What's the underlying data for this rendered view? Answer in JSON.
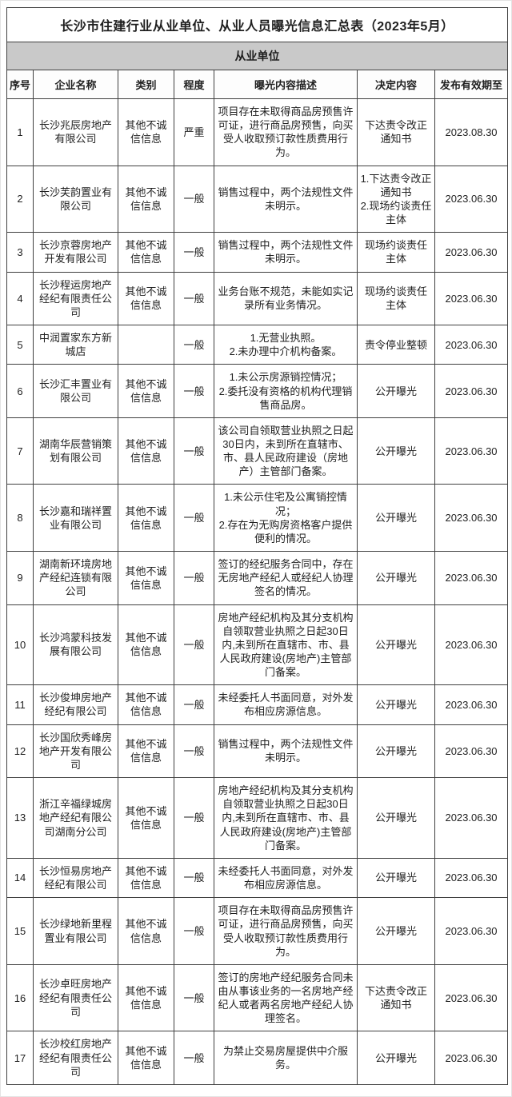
{
  "page": {
    "title": "长沙市住建行业从业单位、从业人员曝光信息汇总表（2023年5月）",
    "section_header": "从业单位"
  },
  "table": {
    "columns": [
      "序号",
      "企业名称",
      "类别",
      "程度",
      "曝光内容描述",
      "决定内容",
      "发布有效期至"
    ],
    "rows": [
      {
        "no": "1",
        "company": "长沙兆辰房地产有限公司",
        "category": "其他不诚信信息",
        "degree": "严重",
        "description": "项目存在未取得商品房预售许可证，进行商品房预售，向买受人收取预订款性质费用行为。",
        "decision": "下达责令改正通知书",
        "valid_until": "2023.08.30"
      },
      {
        "no": "2",
        "company": "长沙芙韵置业有限公司",
        "category": "其他不诚信信息",
        "degree": "一般",
        "description": "销售过程中，两个法规性文件未明示。",
        "decision": "1.下达责令改正通知书\n2.现场约谈责任主体",
        "valid_until": "2023.06.30"
      },
      {
        "no": "3",
        "company": "长沙京蓉房地产开发有限公司",
        "category": "其他不诚信信息",
        "degree": "一般",
        "description": "销售过程中，两个法规性文件未明示。",
        "decision": "现场约谈责任主体",
        "valid_until": "2023.06.30"
      },
      {
        "no": "4",
        "company": "长沙程运房地产经纪有限责任公司",
        "category": "其他不诚信信息",
        "degree": "一般",
        "description": "业务台账不规范，未能如实记录所有业务情况。",
        "decision": "现场约谈责任主体",
        "valid_until": "2023.06.30"
      },
      {
        "no": "5",
        "company": "中润置家东方新城店",
        "category": "",
        "degree": "一般",
        "description": "1.无营业执照。\n2.未办理中介机构备案。",
        "decision": "责令停业整顿",
        "valid_until": "2023.06.30"
      },
      {
        "no": "6",
        "company": "长沙汇丰置业有限公司",
        "category": "其他不诚信信息",
        "degree": "一般",
        "description": "1.未公示房源销控情况；\n2.委托没有资格的机构代理销售商品房。",
        "decision": "公开曝光",
        "valid_until": "2023.06.30"
      },
      {
        "no": "7",
        "company": "湖南华辰营销策划有限公司",
        "category": "其他不诚信信息",
        "degree": "一般",
        "description": "该公司自领取营业执照之日起30日内，未到所在直辖市、市、县人民政府建设（房地产）主管部门备案。",
        "decision": "公开曝光",
        "valid_until": "2023.06.30"
      },
      {
        "no": "8",
        "company": "长沙嘉和瑞祥置业有限公司",
        "category": "其他不诚信信息",
        "degree": "一般",
        "description": "1.未公示住宅及公寓销控情况；\n2.存在为无购房资格客户提供便利的情况。",
        "decision": "公开曝光",
        "valid_until": "2023.06.30"
      },
      {
        "no": "9",
        "company": "湖南新环境房地产经纪连锁有限公司",
        "category": "其他不诚信信息",
        "degree": "一般",
        "description": "签订的经纪服务合同中，存在无房地产经纪人或经纪人协理签名的情况。",
        "decision": "公开曝光",
        "valid_until": "2023.06.30"
      },
      {
        "no": "10",
        "company": "长沙鸿蒙科技发展有限公司",
        "category": "其他不诚信信息",
        "degree": "一般",
        "description": "房地产经纪机构及其分支机构自领取营业执照之日起30日内,未到所在直辖市、市、县人民政府建设(房地产)主管部门备案。",
        "decision": "公开曝光",
        "valid_until": "2023.06.30"
      },
      {
        "no": "11",
        "company": "长沙俊坤房地产经纪有限公司",
        "category": "其他不诚信信息",
        "degree": "一般",
        "description": "未经委托人书面同意，对外发布相应房源信息。",
        "decision": "公开曝光",
        "valid_until": "2023.06.30"
      },
      {
        "no": "12",
        "company": "长沙国欣秀峰房地产开发有限公司",
        "category": "其他不诚信信息",
        "degree": "一般",
        "description": "销售过程中，两个法规性文件未明示。",
        "decision": "公开曝光",
        "valid_until": "2023.06.30"
      },
      {
        "no": "13",
        "company": "浙江辛福绿城房地产经纪有限公司湖南分公司",
        "category": "其他不诚信信息",
        "degree": "一般",
        "description": "房地产经纪机构及其分支机构自领取营业执照之日起30日内,未到所在直辖市、市、县人民政府建设(房地产)主管部门备案。",
        "decision": "公开曝光",
        "valid_until": "2023.06.30"
      },
      {
        "no": "14",
        "company": "长沙恒易房地产经纪有限公司",
        "category": "其他不诚信信息",
        "degree": "一般",
        "description": "未经委托人书面同意，对外发布相应房源信息。",
        "decision": "公开曝光",
        "valid_until": "2023.06.30"
      },
      {
        "no": "15",
        "company": "长沙绿地新里程置业有限公司",
        "category": "其他不诚信信息",
        "degree": "一般",
        "description": "项目存在未取得商品房预售许可证，进行商品房预售，向买受人收取预订款性质费用行为。",
        "decision": "公开曝光",
        "valid_until": "2023.06.30"
      },
      {
        "no": "16",
        "company": "长沙卓旺房地产经纪有限责任公司",
        "category": "其他不诚信信息",
        "degree": "一般",
        "description": "签订的房地产经纪服务合同未由从事该业务的一名房地产经纪人或者两名房地产经纪人协理签名。",
        "decision": "下达责令改正通知书",
        "valid_until": "2023.06.30"
      },
      {
        "no": "17",
        "company": "长沙校红房地产经纪有限责任公司",
        "category": "其他不诚信信息",
        "degree": "一般",
        "description": "为禁止交易房屋提供中介服务。",
        "decision": "公开曝光",
        "valid_until": "2023.06.30"
      }
    ]
  },
  "colors": {
    "section_bg": "#c9c9c9",
    "border": "#404040",
    "text": "#1f1f1f",
    "page_bg": "#ffffff"
  }
}
